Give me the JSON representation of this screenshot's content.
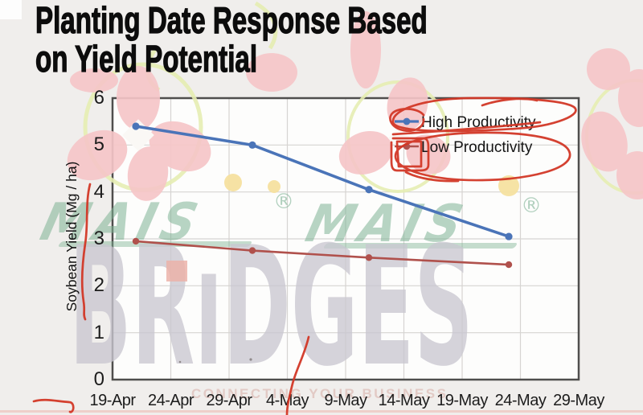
{
  "title": {
    "line1": "Planting Date Response Based",
    "line2": "on Yield Potential"
  },
  "chart_data": {
    "type": "line",
    "title": "",
    "x_axis": {
      "tick_labels": [
        "19-Apr",
        "24-Apr",
        "29-Apr",
        "4-May",
        "9-May",
        "14-May",
        "19-May",
        "24-May",
        "29-May"
      ],
      "tick_day_offsets": [
        0,
        5,
        10,
        15,
        20,
        25,
        30,
        35,
        40
      ]
    },
    "y_axis": {
      "label": "Soybean Yield (Mg / ha)",
      "tick_labels": [
        "0",
        "1",
        "2",
        "3",
        "4",
        "5",
        "6"
      ],
      "ticks": [
        0,
        1,
        2,
        3,
        4,
        5,
        6
      ],
      "range": [
        0,
        6
      ]
    },
    "grid": true,
    "legend_position": "top-right-inside",
    "series": [
      {
        "name": "High Productivity",
        "color": "#4a74b8",
        "marker": "circle",
        "x_days": [
          2,
          12,
          22,
          34
        ],
        "x_dates_approx": [
          "21-Apr",
          "1-May",
          "11-May",
          "23-May"
        ],
        "values": [
          5.4,
          5.0,
          4.05,
          3.05
        ]
      },
      {
        "name": "Low Productivity",
        "color": "#b0514c",
        "marker": "circle",
        "x_days": [
          2,
          12,
          22,
          34
        ],
        "x_dates_approx": [
          "21-Apr",
          "1-May",
          "11-May",
          "23-May"
        ],
        "values": [
          2.95,
          2.75,
          2.6,
          2.45
        ]
      }
    ]
  },
  "watermark": {
    "brand_top": "MAIS",
    "registered": "®",
    "brand_main": "BRiDGES",
    "tagline": "CONNECTING YOUR BUSINESS",
    "green": "#7eb394",
    "gray": "#c9c7d0",
    "petal_pink": "#f6c6c8",
    "tagline_pink": "#e2cac5"
  },
  "annotations": {
    "pen_color": "#d23726",
    "items": [
      "ellipse drawn around High Productivity legend entry",
      "small loop around High Productivity legend marker",
      "large ellipse drawn around Low Productivity legend entry",
      "double box around Low Productivity legend marker",
      "vertical wavy pen line along y-axis between values 4 and 1",
      "vertical pen line crossing the x-axis near 4-May",
      "small arrow squiggle at bottom-left before 19-Apr"
    ]
  }
}
